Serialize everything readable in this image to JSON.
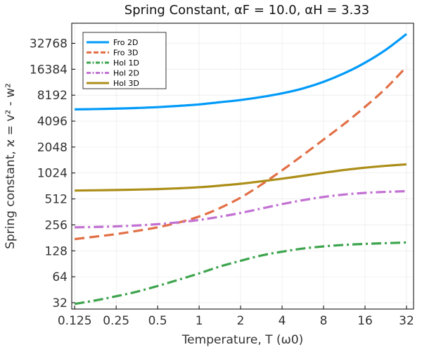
{
  "chart_data": {
    "type": "line",
    "title": "Spring Constant, αF = 10.0, αH = 3.33",
    "xlabel": "Temperature, T (ω0)",
    "ylabel": "Spring constant, ϰ = v² - w²",
    "xscale": "log2",
    "yscale": "log2",
    "xlim": [
      0.119,
      36
    ],
    "ylim": [
      27,
      56000
    ],
    "xticks": [
      0.125,
      0.25,
      0.5,
      1,
      2,
      4,
      8,
      16,
      32
    ],
    "xtick_labels": [
      "0.125",
      "0.25",
      "0.5",
      "1",
      "2",
      "4",
      "8",
      "16",
      "32"
    ],
    "yticks": [
      32,
      64,
      128,
      256,
      512,
      1024,
      2048,
      4096,
      8192,
      16384,
      32768
    ],
    "ytick_labels": [
      "32",
      "64",
      "128",
      "256",
      "512",
      "1024",
      "2048",
      "4096",
      "8192",
      "16384",
      "32768"
    ],
    "grid": true,
    "legend_position": "top-left",
    "x": [
      0.125,
      0.177,
      0.25,
      0.354,
      0.5,
      0.707,
      1,
      1.41,
      2,
      2.83,
      4,
      5.66,
      8,
      11.3,
      16,
      22.6,
      32
    ],
    "series": [
      {
        "name": "Fro 2D",
        "color": "#009af9",
        "dash": "solid",
        "values": [
          5600,
          5650,
          5720,
          5820,
          5950,
          6150,
          6400,
          6780,
          7200,
          7800,
          8600,
          9800,
          11700,
          14700,
          19500,
          27500,
          42000
        ]
      },
      {
        "name": "Fro 3D",
        "color": "#e26f46",
        "dash": "dash",
        "values": [
          175,
          187,
          200,
          218,
          240,
          272,
          320,
          400,
          530,
          750,
          1100,
          1650,
          2500,
          3800,
          6000,
          9800,
          17500
        ]
      },
      {
        "name": "Hol 1D",
        "color": "#3da44d",
        "dash": "dashdot",
        "values": [
          31,
          34,
          38,
          43,
          50,
          59,
          70,
          84,
          98,
          113,
          125,
          136,
          144,
          150,
          154,
          157,
          160
        ]
      },
      {
        "name": "Hol 2D",
        "color": "#c271d2",
        "dash": "dashdot",
        "values": [
          240,
          242,
          246,
          252,
          261,
          274,
          292,
          318,
          352,
          396,
          446,
          495,
          540,
          576,
          602,
          618,
          630
        ]
      },
      {
        "name": "Hol 3D",
        "color": "#ac8e18",
        "dash": "solid",
        "values": [
          640,
          645,
          650,
          657,
          666,
          680,
          700,
          730,
          768,
          820,
          880,
          950,
          1030,
          1110,
          1180,
          1240,
          1290
        ]
      }
    ]
  }
}
